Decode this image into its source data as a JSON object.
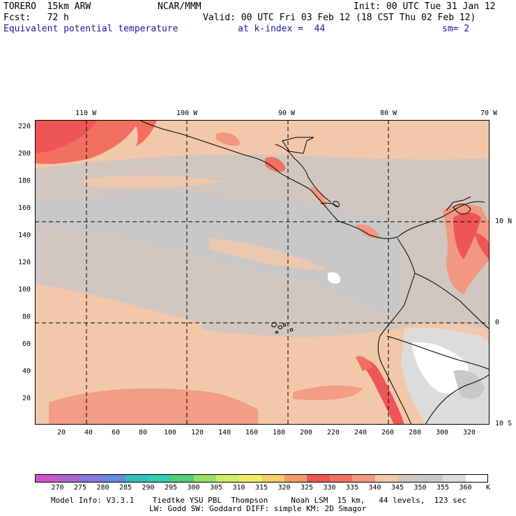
{
  "header": {
    "model": "TORERO  15km ARW",
    "center": "NCAR/MMM",
    "init": "Init: 00 UTC Tue 31 Jan 12",
    "fcst": "Fcst:   72 h",
    "valid": "Valid: 00 UTC Fri 03 Feb 12 (18 CST Thu 02 Feb 12)",
    "field": "Equivalent potential temperature",
    "level": "at k-index =  44",
    "smooth": "sm= 2"
  },
  "map": {
    "top_lon_labels": [
      "110 W",
      "100 W",
      "90 W",
      "80 W",
      "70 W"
    ],
    "right_lat_labels": [
      "10 N",
      "0",
      "10 S"
    ],
    "left_y_ticks": [
      "220",
      "200",
      "180",
      "160",
      "140",
      "120",
      "100",
      "80",
      "60",
      "40",
      "20"
    ],
    "bottom_x_ticks": [
      "20",
      "40",
      "60",
      "80",
      "100",
      "120",
      "140",
      "160",
      "180",
      "200",
      "220",
      "240",
      "260",
      "280",
      "300",
      "320"
    ]
  },
  "colorbar": {
    "unit": "K",
    "labels": [
      "270",
      "275",
      "280",
      "285",
      "290",
      "295",
      "300",
      "305",
      "310",
      "315",
      "320",
      "325",
      "330",
      "335",
      "340",
      "345",
      "350",
      "355",
      "360"
    ],
    "colors": [
      "#cc55cc",
      "#aa66cc",
      "#8877dd",
      "#6688dd",
      "#33bbbb",
      "#33ccaa",
      "#55cc77",
      "#99dd66",
      "#ccee66",
      "#eeee66",
      "#f5cc66",
      "#f59966",
      "#ee5555",
      "#f27060",
      "#f29880",
      "#f2c8aa",
      "#d2c6c0",
      "#c8c8c8",
      "#dcdcdc",
      "#ffffff"
    ]
  },
  "footer": {
    "line1": "Model Info: V3.3.1    Tiedtke YSU PBL  Thompson     Noah LSM  15 km,   44 levels,  123 sec",
    "line2": "LW: Godd SW: Goddard DIFF: simple KM: 2D Smagor"
  }
}
